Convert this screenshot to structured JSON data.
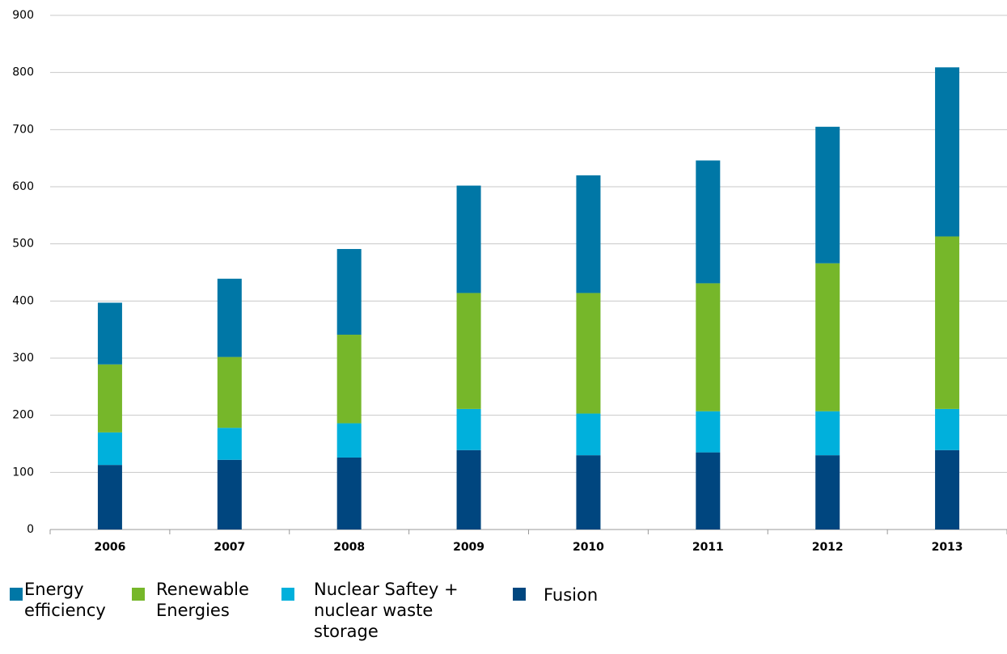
{
  "chart_data": {
    "type": "stacked_bar",
    "categories": [
      "2006",
      "2007",
      "2008",
      "2009",
      "2010",
      "2011",
      "2012",
      "2013"
    ],
    "series": [
      {
        "name": "Fusion",
        "color": "#00467f",
        "values": [
          113,
          122,
          126,
          139,
          130,
          135,
          130,
          139
        ]
      },
      {
        "name": "Nuclear Saftey + nuclear waste storage",
        "color": "#00b0dc",
        "values": [
          57,
          56,
          60,
          72,
          73,
          72,
          77,
          72
        ]
      },
      {
        "name": "Renewable Energies",
        "color": "#76b72a",
        "values": [
          119,
          124,
          155,
          203,
          211,
          224,
          259,
          302
        ]
      },
      {
        "name": "Energy efficiency",
        "color": "#0077a6",
        "values": [
          108,
          137,
          150,
          188,
          206,
          215,
          239,
          296
        ]
      }
    ],
    "ylim": [
      0,
      900
    ],
    "yticks": [
      0,
      100,
      200,
      300,
      400,
      500,
      600,
      700,
      800,
      900
    ],
    "grid": true
  }
}
